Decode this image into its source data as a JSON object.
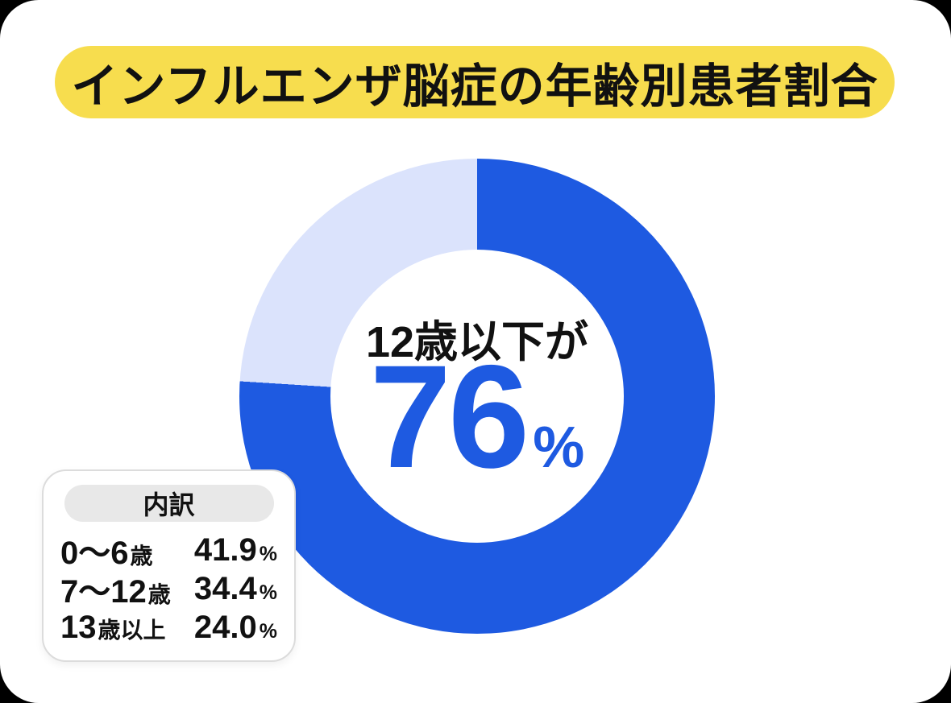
{
  "page": {
    "outer_bg": "#000000",
    "card_bg": "#ffffff"
  },
  "header": {
    "title": "インフルエンザ脳症の年齢別患者割合",
    "bg": "#F7DD4E",
    "text_color": "#111111"
  },
  "chart_data": {
    "type": "pie",
    "subtype": "donut",
    "title": "インフルエンザ脳症の年齢別患者割合",
    "start_angle_deg": 0,
    "direction": "clockwise",
    "center_label": "12歳以下が",
    "center_value": "76",
    "center_unit": "%",
    "segments": [
      {
        "label": "12歳以下",
        "value": 76,
        "color": "#1E5AE1"
      },
      {
        "label": "13歳以上",
        "value": 24,
        "color": "#DBE3FC"
      }
    ],
    "breakdown": {
      "title": "内訳",
      "rows": [
        {
          "range": "0〜6",
          "range_suffix": "歳",
          "value": "41.9",
          "unit": "%"
        },
        {
          "range": "7〜12",
          "range_suffix": "歳",
          "value": "34.4",
          "unit": "%"
        },
        {
          "range": "13",
          "range_suffix": "歳以上",
          "value": "24.0",
          "unit": "%"
        }
      ]
    }
  }
}
